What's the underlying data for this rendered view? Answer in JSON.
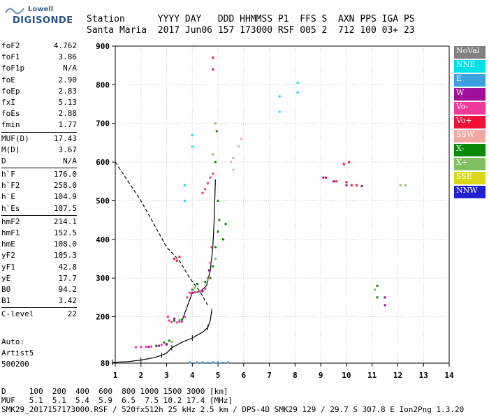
{
  "logo": {
    "line1": "Lowell",
    "line2": "DIGISONDE"
  },
  "header": {
    "line1": "Station      YYYY DAY   DDD HHMMSS P1  FFS S  AXN PPS IGA PS",
    "line2": "Santa Maria  2017 Jun06 157 173000 RSF 005 2  712 100 03+ 23"
  },
  "params_groups": [
    [
      [
        "foF2",
        "4.762"
      ],
      [
        "foF1",
        "3.86"
      ],
      [
        "foF1p",
        "N/A"
      ],
      [
        "foE",
        "2.90"
      ],
      [
        "foEp",
        "2.83"
      ],
      [
        "fxI",
        "5.13"
      ],
      [
        "foEs",
        "2.88"
      ],
      [
        "fmin",
        "1.77"
      ]
    ],
    [
      [
        "MUF(D)",
        "17.43"
      ],
      [
        "M(D)",
        "3.67"
      ],
      [
        "D",
        "N/A"
      ]
    ],
    [
      [
        "h`F",
        "176.0"
      ],
      [
        "h`F2",
        "258.0"
      ],
      [
        "h`E",
        "104.9"
      ],
      [
        "h`Es",
        "107.5"
      ]
    ],
    [
      [
        "hmF2",
        "214.1"
      ],
      [
        "hmF1",
        "152.5"
      ],
      [
        "hmE",
        "108.0"
      ],
      [
        "yF2",
        "105.3"
      ],
      [
        "yF1",
        "42.8"
      ],
      [
        "yE",
        "17.7"
      ],
      [
        "B0",
        "94.2"
      ],
      [
        "B1",
        "3.42"
      ]
    ],
    [
      [
        "C-level",
        "22"
      ]
    ]
  ],
  "auto": {
    "line1": "Auto:",
    "line2": "Artist5",
    "line3": "500200"
  },
  "footer": {
    "line1": "D     100  200  400  600  800 1000 1500 3000 [km]",
    "line2": "MUF   5.1  5.1  5.4  5.9  6.5  7.5 10.2 17.4 [MHz]",
    "line3": "SMK29_2017157173000.RSF / 520fx512h 25 kHz 2.5 km / DPS-4D SMK29 129 / 29.7 S 307.8 E Ion2Png 1.3.20"
  },
  "legend": [
    {
      "label": "NoVal",
      "bg": "#808080",
      "fg": "#ffffff"
    },
    {
      "label": "NNE",
      "bg": "#00e0e8",
      "fg": "#ffffff"
    },
    {
      "label": "E",
      "bg": "#3aa0e0",
      "fg": "#ffffff"
    },
    {
      "label": "W",
      "bg": "#a0109a",
      "fg": "#ffffff"
    },
    {
      "label": "Vo-",
      "bg": "#f03a9a",
      "fg": "#ffffff"
    },
    {
      "label": "Vo+",
      "bg": "#f0103a",
      "fg": "#ffffff"
    },
    {
      "label": "SSW",
      "bg": "#f0a8a0",
      "fg": "#ffffff"
    },
    {
      "label": "X-",
      "bg": "#0a8a0a",
      "fg": "#ffffff"
    },
    {
      "label": "X+",
      "bg": "#80c060",
      "fg": "#ffffff"
    },
    {
      "label": "SSE",
      "bg": "#d8d818",
      "fg": "#ffffff"
    },
    {
      "label": "NNW",
      "bg": "#2020d0",
      "fg": "#ffffff"
    }
  ],
  "chart_data": {
    "type": "scatter",
    "title": "",
    "xlabel": "",
    "ylabel": "",
    "xlim": [
      1,
      14
    ],
    "ylim": [
      80,
      900
    ],
    "x_ticks": [
      1,
      2,
      3,
      4,
      5,
      6,
      7,
      8,
      9,
      10,
      11,
      12,
      13,
      14
    ],
    "y_ticks": [
      80,
      200,
      300,
      400,
      500,
      600,
      700,
      800,
      900
    ],
    "grid": true,
    "series": [
      {
        "name": "Vo-",
        "color": "#f03a9a",
        "points": [
          [
            1.8,
            121
          ],
          [
            2.0,
            122
          ],
          [
            2.2,
            122
          ],
          [
            2.4,
            123
          ],
          [
            2.6,
            124
          ],
          [
            2.8,
            127
          ],
          [
            3.0,
            130
          ],
          [
            3.05,
            200
          ],
          [
            3.1,
            190
          ],
          [
            3.2,
            186
          ],
          [
            3.4,
            185
          ],
          [
            3.6,
            187
          ],
          [
            3.7,
            200
          ],
          [
            3.8,
            250
          ],
          [
            3.9,
            262
          ],
          [
            4.1,
            263
          ],
          [
            4.3,
            265
          ],
          [
            4.5,
            272
          ],
          [
            4.6,
            300
          ],
          [
            4.7,
            340
          ],
          [
            4.75,
            380
          ],
          [
            4.4,
            520
          ],
          [
            4.5,
            530
          ],
          [
            4.6,
            545
          ],
          [
            4.7,
            560
          ],
          [
            4.8,
            570
          ]
        ]
      },
      {
        "name": "Vo+",
        "color": "#f0103a",
        "points": [
          [
            3.3,
            350
          ],
          [
            3.4,
            345
          ],
          [
            3.5,
            355
          ],
          [
            4.8,
            840
          ],
          [
            4.8,
            870
          ],
          [
            9.2,
            560
          ],
          [
            9.6,
            550
          ],
          [
            10.0,
            548
          ],
          [
            10.2,
            540
          ],
          [
            10.4,
            540
          ],
          [
            10.1,
            600
          ],
          [
            9.9,
            595
          ]
        ]
      },
      {
        "name": "W",
        "color": "#a0109a",
        "points": [
          [
            2.3,
            122
          ],
          [
            2.7,
            125
          ],
          [
            3.0,
            128
          ],
          [
            3.3,
            195
          ],
          [
            3.5,
            188
          ],
          [
            4.0,
            262
          ],
          [
            4.4,
            266
          ],
          [
            4.65,
            320
          ],
          [
            9.1,
            560
          ],
          [
            9.5,
            550
          ],
          [
            10.0,
            540
          ],
          [
            10.6,
            538
          ],
          [
            11.5,
            250
          ],
          [
            11.5,
            230
          ]
        ]
      },
      {
        "name": "X-",
        "color": "#0a8a0a",
        "points": [
          [
            2.6,
            125
          ],
          [
            2.9,
            133
          ],
          [
            3.1,
            138
          ],
          [
            3.3,
            190
          ],
          [
            3.6,
            193
          ],
          [
            4.0,
            270
          ],
          [
            4.2,
            285
          ],
          [
            4.5,
            290
          ],
          [
            4.7,
            300
          ],
          [
            4.8,
            330
          ],
          [
            4.9,
            380
          ],
          [
            5.0,
            420
          ],
          [
            5.05,
            450
          ],
          [
            5.0,
            500
          ],
          [
            4.9,
            600
          ],
          [
            4.95,
            680
          ],
          [
            5.2,
            400
          ],
          [
            5.3,
            440
          ],
          [
            11.2,
            280
          ],
          [
            11.2,
            250
          ]
        ]
      },
      {
        "name": "X+",
        "color": "#80c060",
        "points": [
          [
            3.2,
            135
          ],
          [
            3.5,
            192
          ],
          [
            4.1,
            275
          ],
          [
            4.6,
            296
          ],
          [
            4.9,
            350
          ],
          [
            4.8,
            620
          ],
          [
            4.9,
            700
          ],
          [
            11.1,
            270
          ],
          [
            12.1,
            540
          ],
          [
            12.3,
            540
          ]
        ]
      },
      {
        "name": "SSW",
        "color": "#f0a8a0",
        "points": [
          [
            5.5,
            600
          ],
          [
            5.6,
            610
          ],
          [
            5.8,
            640
          ],
          [
            5.6,
            580
          ],
          [
            5.9,
            660
          ]
        ]
      },
      {
        "name": "NNE",
        "color": "#00e0e8",
        "points": [
          [
            7.4,
            770
          ],
          [
            7.4,
            730
          ],
          [
            8.1,
            805
          ],
          [
            8.1,
            780
          ],
          [
            4.0,
            670
          ],
          [
            4.0,
            640
          ],
          [
            3.7,
            540
          ],
          [
            3.7,
            500
          ]
        ]
      },
      {
        "name": "E",
        "color": "#3aa0e0",
        "points": [
          [
            4.2,
            82
          ],
          [
            4.4,
            82
          ],
          [
            4.6,
            81
          ],
          [
            4.8,
            82
          ],
          [
            5.0,
            82
          ],
          [
            5.2,
            81
          ],
          [
            5.4,
            82
          ],
          [
            3.9,
            82
          ]
        ]
      }
    ],
    "trace_virtual_height": [
      [
        0.9,
        82
      ],
      [
        1.5,
        84
      ],
      [
        2.0,
        88
      ],
      [
        2.5,
        94
      ],
      [
        2.8,
        100
      ],
      [
        3.0,
        106
      ],
      [
        3.2,
        120
      ],
      [
        3.6,
        134
      ],
      [
        4.0,
        145
      ],
      [
        4.4,
        160
      ],
      [
        4.6,
        172
      ],
      [
        4.7,
        190
      ],
      [
        4.75,
        214
      ]
    ],
    "profile_virtual_height_black": [
      [
        3.6,
        190
      ],
      [
        4.0,
        262
      ],
      [
        4.3,
        265
      ],
      [
        4.55,
        280
      ],
      [
        4.7,
        320
      ],
      [
        4.8,
        380
      ],
      [
        4.85,
        450
      ],
      [
        4.9,
        555
      ]
    ],
    "dashed_curve": [
      [
        1.0,
        600
      ],
      [
        1.5,
        550
      ],
      [
        2.0,
        500
      ],
      [
        2.5,
        440
      ],
      [
        3.0,
        380
      ],
      [
        3.5,
        345
      ],
      [
        3.9,
        300
      ],
      [
        4.3,
        265
      ],
      [
        4.6,
        230
      ]
    ]
  }
}
